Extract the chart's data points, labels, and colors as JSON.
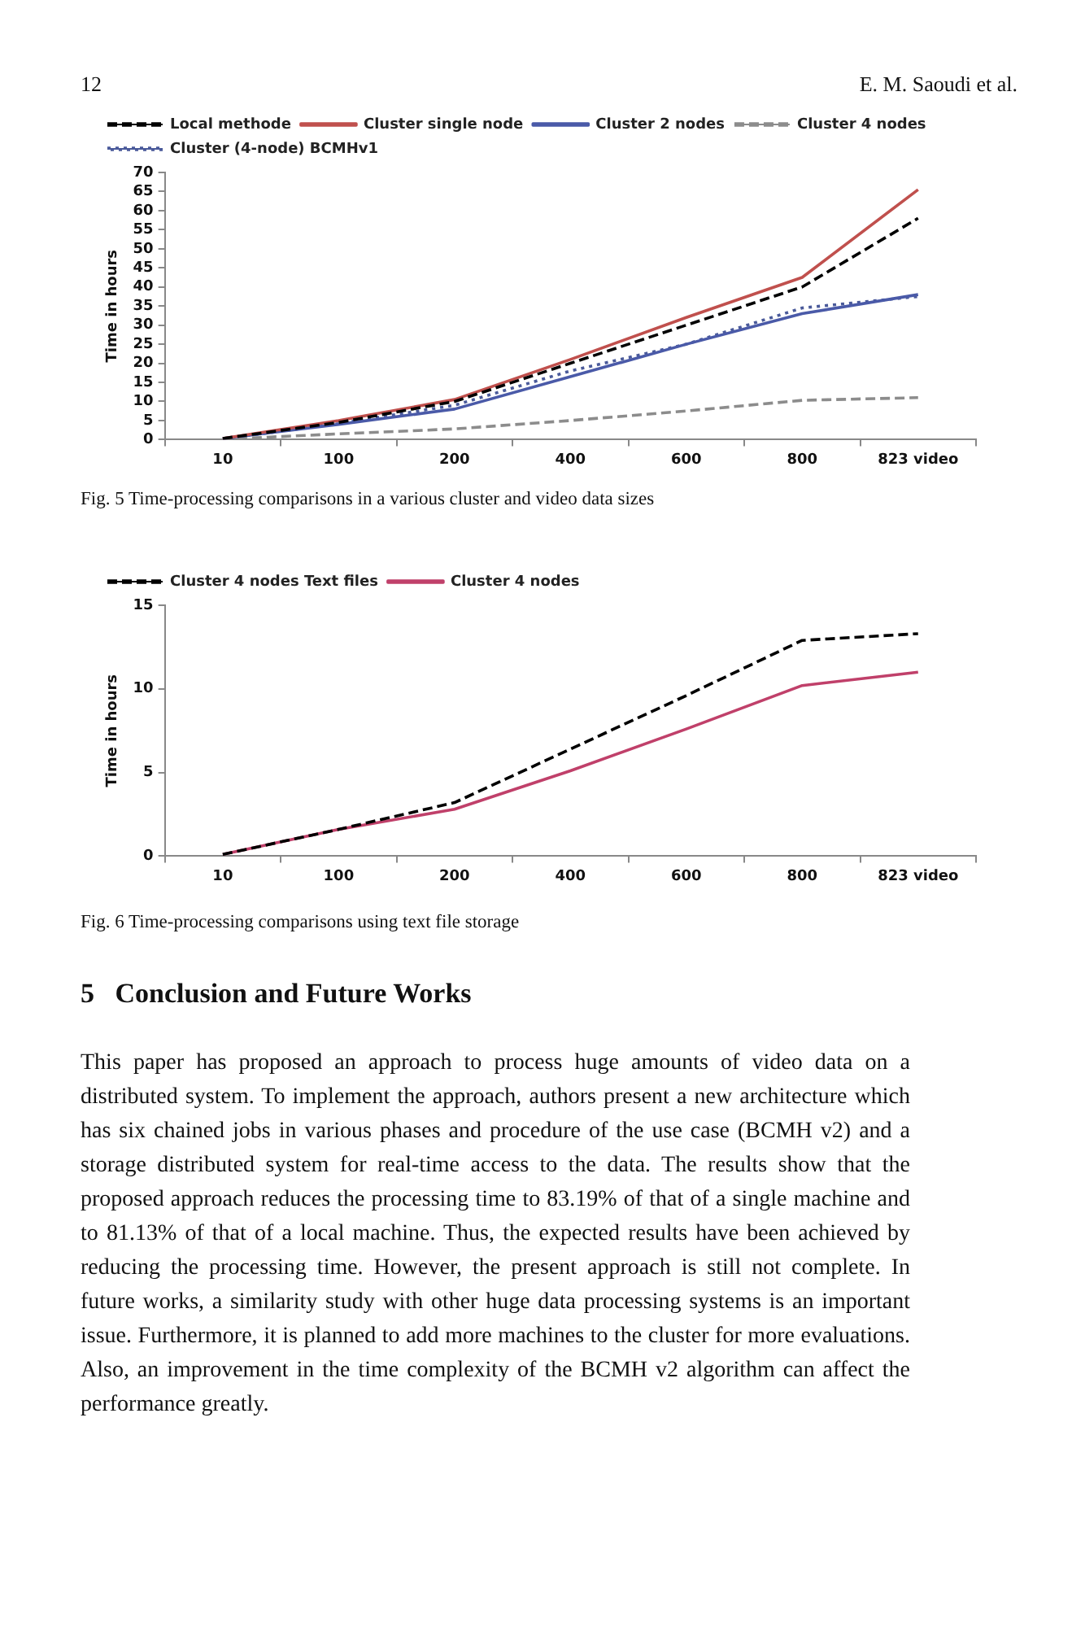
{
  "chart_data": [
    {
      "type": "line",
      "ylabel": "Time in hours",
      "categories": [
        "10",
        "100",
        "200",
        "400",
        "600",
        "800",
        "823 video"
      ],
      "ylim": [
        0,
        70
      ],
      "yticks": [
        0,
        5,
        10,
        15,
        20,
        25,
        30,
        35,
        40,
        45,
        50,
        55,
        60,
        65,
        70
      ],
      "grid": false,
      "legend": "top left",
      "marker": "none",
      "series": [
        {
          "name": "Local methode",
          "color": "#000000",
          "line_style": "dashed",
          "values": [
            0.3,
            4.5,
            10,
            20,
            30,
            40,
            58
          ]
        },
        {
          "name": "Cluster single node",
          "color": "#c0504d",
          "line_style": "solid",
          "values": [
            0.3,
            5,
            10.5,
            21,
            32,
            42.5,
            65.5
          ]
        },
        {
          "name": "Cluster 2 nodes",
          "color": "#4a5aa8",
          "line_style": "solid",
          "values": [
            0.3,
            4,
            8,
            16.5,
            25,
            33,
            38
          ]
        },
        {
          "name": "Cluster 4 nodes",
          "color": "#8c8c8c",
          "line_style": "dashed",
          "values": [
            0.1,
            1.5,
            2.8,
            5,
            7.5,
            10.3,
            11
          ]
        },
        {
          "name": "Cluster (4-node) BCMHv1",
          "color": "#4a5a9a",
          "line_style": "dotted",
          "values": [
            0.2,
            4.2,
            9,
            18,
            25,
            34.5,
            37.5
          ]
        }
      ],
      "annotations": [
        "12",
        "E. M. Saoudi et al.",
        "Fig. 5  Time-processing comparisons in a various cluster and video data sizes"
      ]
    },
    {
      "type": "line",
      "ylabel": "Time in hours",
      "categories": [
        "10",
        "100",
        "200",
        "400",
        "600",
        "800",
        "823 video"
      ],
      "ylim": [
        0,
        15
      ],
      "yticks": [
        0,
        5,
        10,
        15
      ],
      "grid": false,
      "legend": "top left",
      "marker": "none",
      "series": [
        {
          "name": "Cluster 4 nodes Text files",
          "color": "#000000",
          "line_style": "dashed",
          "values": [
            0.1,
            1.6,
            3.2,
            6.4,
            9.6,
            12.9,
            13.3
          ]
        },
        {
          "name": "Cluster 4 nodes",
          "color": "#c0406a",
          "line_style": "solid",
          "values": [
            0.1,
            1.6,
            2.8,
            5.1,
            7.6,
            10.2,
            11
          ]
        }
      ],
      "annotations": [
        "Fig. 6  Time-processing comparisons using text file storage",
        "5   Conclusion and Future Works",
        "This paper has proposed an approach to process huge amounts of video data on a distributed system. To implement the approach, authors present a new architecture which has six chained jobs in various phases and procedure of the use case (BCMH v2) and a storage distributed system for real-time access to the data. The results show that the proposed approach reduces the processing time to 83.19% of that of a single machine and to 81.13% of that of a local machine. Thus, the expected results have been achieved by reducing the processing time. However, the present approach is still not complete. In future works, a similarity study with other huge data processing systems is an important issue. Furthermore, it is planned to add more machines to the cluster for more evaluations. Also, an improvement in the time complexity of the BCMH v2 algorithm can affect the performance greatly."
      ]
    }
  ]
}
